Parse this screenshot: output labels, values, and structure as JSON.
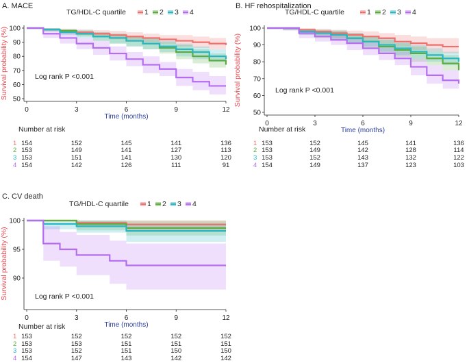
{
  "figure": {
    "risk_table_header": "Number at risk",
    "legend_title": "TG/HDL-C quartile",
    "colors": {
      "q1": "#ef6f6c",
      "q2": "#5dab3e",
      "q3": "#28b6c2",
      "q4": "#b56df0",
      "ylabel": "#e8474f",
      "xlabel": "#2e3f9e"
    }
  },
  "chart_data": [
    {
      "panel": "A",
      "title": "A.  MACE",
      "type": "line",
      "step": true,
      "xlabel": "Time (months)",
      "ylabel": "Survival probability (%)",
      "xlim": [
        0,
        12
      ],
      "ylim": [
        50,
        100
      ],
      "xticks": [
        0,
        3,
        6,
        9,
        12
      ],
      "yticks": [
        50,
        60,
        70,
        80,
        90,
        100
      ],
      "legend": {
        "title": "TG/HDL-C quartile",
        "entries": [
          "1",
          "2",
          "3",
          "4"
        ],
        "placement": "top"
      },
      "annotation": "Log rank P <0.001",
      "series": [
        {
          "name": "1",
          "x": [
            0,
            1,
            2,
            3,
            4,
            5,
            6,
            7,
            8,
            9,
            10,
            11,
            12
          ],
          "y": [
            100,
            99,
            98,
            97,
            96,
            95,
            94,
            93,
            92,
            91,
            90,
            89,
            88
          ],
          "ci_upper": [
            100,
            100,
            99.5,
            99,
            98.5,
            98,
            97,
            96,
            95,
            95,
            94,
            93,
            92
          ],
          "ci_lower": [
            100,
            98,
            96.5,
            95,
            93.5,
            92,
            91,
            90,
            89,
            87,
            86,
            85,
            84
          ]
        },
        {
          "name": "2",
          "x": [
            0,
            1,
            2,
            3,
            4,
            5,
            6,
            7,
            8,
            9,
            10,
            11,
            12
          ],
          "y": [
            100,
            99,
            98,
            96,
            94,
            93,
            91,
            89,
            86,
            83,
            80,
            77,
            74
          ],
          "ci_upper": [
            100,
            100,
            99.5,
            98,
            97,
            96,
            94,
            93,
            90,
            88,
            85,
            82,
            79
          ],
          "ci_lower": [
            100,
            98,
            96,
            94,
            91,
            89,
            87,
            85,
            82,
            78,
            75,
            72,
            69
          ]
        },
        {
          "name": "3",
          "x": [
            0,
            1,
            2,
            3,
            4,
            5,
            6,
            7,
            8,
            9,
            10,
            11,
            12
          ],
          "y": [
            100,
            99,
            97,
            96,
            94,
            93,
            91,
            89,
            87,
            85,
            83,
            80,
            78
          ],
          "ci_upper": [
            100,
            100,
            99,
            98.5,
            97,
            96,
            94,
            93,
            91,
            89,
            87,
            85,
            83
          ],
          "ci_lower": [
            100,
            97.5,
            95,
            93,
            91,
            89,
            87,
            85,
            83,
            80,
            78,
            76,
            73
          ]
        },
        {
          "name": "4",
          "x": [
            0,
            1,
            2,
            3,
            4,
            5,
            6,
            7,
            8,
            9,
            10,
            11,
            12
          ],
          "y": [
            100,
            96,
            93,
            89,
            86,
            82,
            78,
            74,
            71,
            65,
            62,
            59,
            59
          ],
          "ci_upper": [
            100,
            99,
            96.5,
            93,
            91,
            87,
            83,
            80,
            76,
            71,
            69,
            66,
            66
          ],
          "ci_lower": [
            100,
            93,
            89,
            85,
            81,
            77,
            73,
            68,
            66,
            59,
            56,
            53,
            51
          ]
        }
      ],
      "risk_table": [
        {
          "group": "1",
          "values": [
            "154",
            "152",
            "145",
            "141",
            "136"
          ]
        },
        {
          "group": "2",
          "values": [
            "153",
            "149",
            "141",
            "127",
            "113"
          ]
        },
        {
          "group": "3",
          "values": [
            "153",
            "151",
            "141",
            "130",
            "120"
          ]
        },
        {
          "group": "4",
          "values": [
            "154",
            "142",
            "126",
            "111",
            "91"
          ]
        }
      ]
    },
    {
      "panel": "B",
      "title": "B.  HF rehospitalization",
      "type": "line",
      "step": true,
      "xlabel": "Time (months)",
      "ylabel": "Survival probability (%)",
      "xlim": [
        0,
        12
      ],
      "ylim": [
        50,
        100
      ],
      "xticks": [
        0,
        3,
        6,
        9,
        12
      ],
      "yticks": [
        50,
        60,
        70,
        80,
        90,
        100
      ],
      "legend": {
        "title": "TG/HDL-C quartile",
        "entries": [
          "1",
          "2",
          "3",
          "4"
        ],
        "placement": "top"
      },
      "annotation": "Log rank P <0.001",
      "series": [
        {
          "name": "1",
          "x": [
            0,
            1,
            2,
            3,
            4,
            5,
            6,
            7,
            8,
            9,
            10,
            11,
            12
          ],
          "y": [
            100,
            100,
            99,
            98,
            97,
            96,
            95,
            94,
            92,
            91,
            90,
            89,
            89
          ],
          "ci_upper": [
            100,
            100,
            100,
            99.5,
            99,
            98.5,
            98,
            97,
            96,
            95,
            94,
            94,
            94
          ],
          "ci_lower": [
            100,
            99,
            97,
            96,
            94,
            93,
            92,
            90,
            89,
            87,
            86,
            85,
            84
          ]
        },
        {
          "name": "2",
          "x": [
            0,
            1,
            2,
            3,
            4,
            5,
            6,
            7,
            8,
            9,
            10,
            11,
            12
          ],
          "y": [
            100,
            100,
            98,
            97,
            96,
            94,
            92,
            89,
            87,
            85,
            82,
            79,
            75
          ],
          "ci_upper": [
            100,
            100,
            99.5,
            99,
            98.5,
            97,
            95,
            93,
            91,
            89,
            86,
            84,
            80
          ],
          "ci_lower": [
            100,
            99,
            96,
            94,
            93,
            91,
            88,
            85,
            83,
            80,
            78,
            75,
            70
          ]
        },
        {
          "name": "3",
          "x": [
            0,
            1,
            2,
            3,
            4,
            5,
            6,
            7,
            8,
            9,
            10,
            11,
            12
          ],
          "y": [
            100,
            100,
            98,
            97,
            96,
            94,
            92,
            90,
            88,
            86,
            84,
            82,
            80
          ],
          "ci_upper": [
            100,
            100,
            99.5,
            99,
            98.5,
            97,
            95.5,
            94,
            92,
            90,
            88,
            86,
            84
          ],
          "ci_lower": [
            100,
            99,
            96,
            95,
            93,
            91,
            89,
            86,
            84,
            82,
            80,
            78,
            76
          ]
        },
        {
          "name": "4",
          "x": [
            0,
            1,
            2,
            3,
            4,
            5,
            6,
            7,
            8,
            9,
            10,
            11,
            12
          ],
          "y": [
            100,
            100,
            97,
            95,
            93,
            91,
            88,
            85,
            82,
            77,
            72,
            69,
            67
          ],
          "ci_upper": [
            100,
            100,
            99,
            98,
            96,
            94,
            92,
            89,
            86,
            82,
            78,
            75,
            74
          ],
          "ci_lower": [
            100,
            98.5,
            94,
            92,
            90,
            87,
            84,
            81,
            78,
            72,
            67,
            64,
            62
          ]
        }
      ],
      "risk_table": [
        {
          "group": "1",
          "values": [
            "153",
            "152",
            "145",
            "141",
            "136"
          ]
        },
        {
          "group": "2",
          "values": [
            "153",
            "149",
            "142",
            "128",
            "114"
          ]
        },
        {
          "group": "3",
          "values": [
            "153",
            "152",
            "143",
            "132",
            "122"
          ]
        },
        {
          "group": "4",
          "values": [
            "154",
            "149",
            "137",
            "123",
            "103"
          ]
        }
      ]
    },
    {
      "panel": "C",
      "title": "C.  CV death",
      "type": "line",
      "step": true,
      "xlabel": "Time (months)",
      "ylabel": "Survival probability (%)",
      "xlim": [
        0,
        12
      ],
      "ylim": [
        85,
        100
      ],
      "xticks": [
        0,
        3,
        6,
        9,
        12
      ],
      "yticks": [
        90,
        95,
        100
      ],
      "legend": {
        "title": "TG/HDL-C quartile",
        "entries": [
          "1",
          "2",
          "3",
          "4"
        ],
        "placement": "top"
      },
      "annotation": "Log rank P <0.001",
      "series": [
        {
          "name": "1",
          "x": [
            0,
            1,
            3,
            6,
            12
          ],
          "y": [
            100,
            100,
            99.6,
            99.3,
            99.3
          ],
          "ci_upper": [
            100,
            100,
            100,
            100,
            100
          ],
          "ci_lower": [
            100,
            100,
            98.8,
            98.0,
            98.0
          ]
        },
        {
          "name": "2",
          "x": [
            0,
            1,
            3,
            6,
            12
          ],
          "y": [
            100,
            100,
            99.4,
            98.7,
            98.7
          ],
          "ci_upper": [
            100,
            100,
            100,
            100,
            100
          ],
          "ci_lower": [
            100,
            100,
            98.3,
            97.4,
            97.4
          ]
        },
        {
          "name": "3",
          "x": [
            0,
            1,
            3,
            6,
            12
          ],
          "y": [
            100,
            99.4,
            99.0,
            98.2,
            98.2
          ],
          "ci_upper": [
            100,
            100,
            100,
            99.6,
            99.6
          ],
          "ci_lower": [
            100,
            98.5,
            97.9,
            96.3,
            96.3
          ]
        },
        {
          "name": "4",
          "x": [
            0,
            1,
            2,
            3,
            5,
            6,
            12
          ],
          "y": [
            100,
            96,
            95,
            94,
            93,
            92.2,
            92.2
          ],
          "ci_upper": [
            100,
            99,
            98,
            97.5,
            96.5,
            96,
            96
          ],
          "ci_lower": [
            100,
            93,
            92,
            90.5,
            89,
            88,
            88
          ]
        }
      ],
      "risk_table": [
        {
          "group": "1",
          "values": [
            "153",
            "152",
            "152",
            "152",
            "152"
          ]
        },
        {
          "group": "2",
          "values": [
            "153",
            "153",
            "151",
            "151",
            "151"
          ]
        },
        {
          "group": "3",
          "values": [
            "153",
            "152",
            "151",
            "150",
            "150"
          ]
        },
        {
          "group": "4",
          "values": [
            "154",
            "147",
            "143",
            "142",
            "142"
          ]
        }
      ]
    }
  ]
}
